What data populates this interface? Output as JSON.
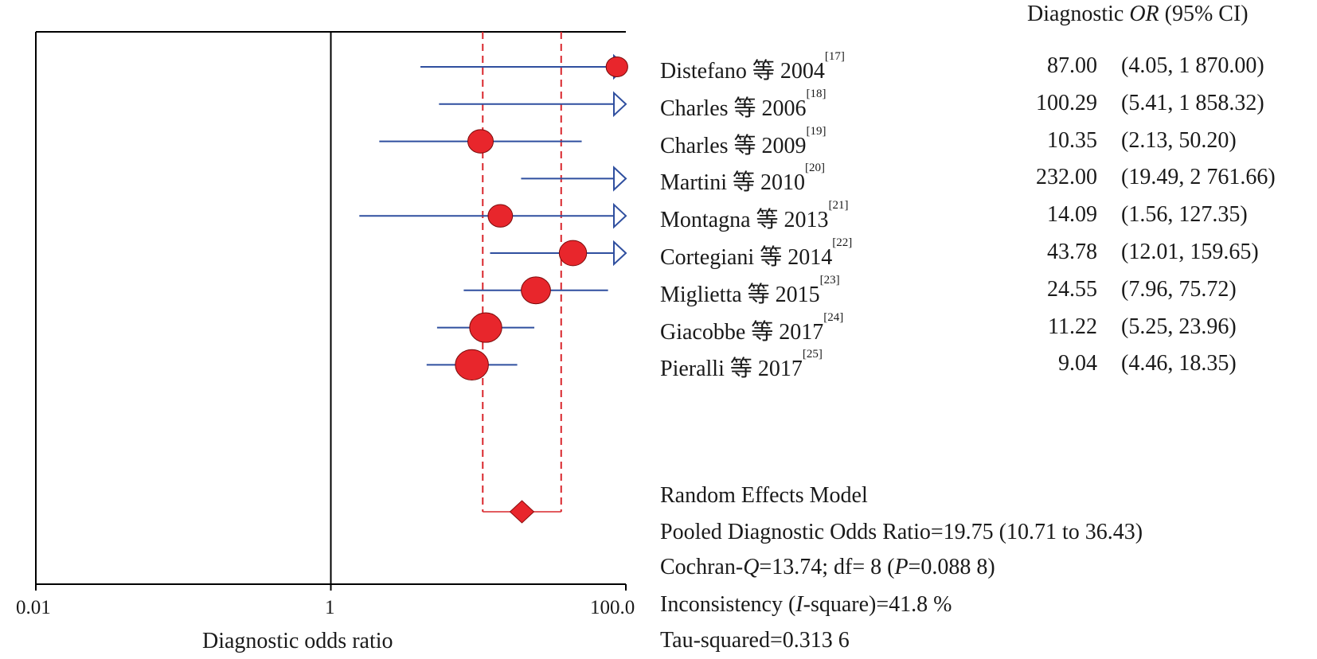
{
  "chart_data": {
    "type": "forest",
    "xlabel": "Diagnostic odds ratio",
    "x_scale": "log",
    "x_ticks": [
      "0.01",
      "1",
      "100.0"
    ],
    "xlim": [
      0.01,
      100
    ],
    "column_header": {
      "prefix": "Diagnostic ",
      "italic": "OR",
      "suffix": " (95% CI)"
    },
    "studies": [
      {
        "name": "Distefano 等 2004",
        "ref": "[17]",
        "or": 87.0,
        "ci_low": 4.05,
        "ci_high": 1870.0,
        "or_text": "87.00",
        "ci_text": "(4.05, 1 870.00)"
      },
      {
        "name": "Charles 等 2006",
        "ref": "[18]",
        "or": 100.29,
        "ci_low": 5.41,
        "ci_high": 1858.32,
        "or_text": "100.29",
        "ci_text": "(5.41, 1 858.32)"
      },
      {
        "name": "Charles 等 2009",
        "ref": "[19]",
        "or": 10.35,
        "ci_low": 2.13,
        "ci_high": 50.2,
        "or_text": "10.35",
        "ci_text": "(2.13, 50.20)"
      },
      {
        "name": "Martini 等 2010",
        "ref": "[20]",
        "or": 232.0,
        "ci_low": 19.49,
        "ci_high": 2761.66,
        "or_text": "232.00",
        "ci_text": "(19.49, 2 761.66)"
      },
      {
        "name": "Montagna 等 2013",
        "ref": "[21]",
        "or": 14.09,
        "ci_low": 1.56,
        "ci_high": 127.35,
        "or_text": "14.09",
        "ci_text": "(1.56, 127.35)"
      },
      {
        "name": "Cortegiani 等 2014",
        "ref": "[22]",
        "or": 43.78,
        "ci_low": 12.01,
        "ci_high": 159.65,
        "or_text": "43.78",
        "ci_text": "(12.01, 159.65)"
      },
      {
        "name": "Miglietta 等 2015",
        "ref": "[23]",
        "or": 24.55,
        "ci_low": 7.96,
        "ci_high": 75.72,
        "or_text": "24.55",
        "ci_text": "(7.96, 75.72)"
      },
      {
        "name": "Giacobbe 等 2017",
        "ref": "[24]",
        "or": 11.22,
        "ci_low": 5.25,
        "ci_high": 23.96,
        "or_text": "11.22",
        "ci_text": "(5.25, 23.96)"
      },
      {
        "name": "Pieralli 等 2017",
        "ref": "[25]",
        "or": 9.04,
        "ci_low": 4.46,
        "ci_high": 18.35,
        "or_text": "9.04",
        "ci_text": "(4.46, 18.35)"
      }
    ],
    "pooled": {
      "or": 19.75,
      "ci_low": 10.71,
      "ci_high": 36.43
    },
    "marker_weight": [
      0.3,
      0.0,
      0.5,
      0.0,
      0.45,
      0.6,
      0.7,
      0.85,
      0.9
    ],
    "summary": {
      "model": "Random Effects Model",
      "pooled_text": "Pooled Diagnostic Odds Ratio=19.75 (10.71 to 36.43)",
      "cochran_pre": "Cochran-",
      "cochran_q": "Q",
      "cochran_mid": "=13.74; df= 8 (",
      "cochran_p": "P",
      "cochran_post": "=0.088 8)",
      "incons_pre": "Inconsistency (",
      "incons_i": "I",
      "incons_post": "-square)=41.8 %",
      "tau": "Tau-squared=0.313 6"
    },
    "colors": {
      "ci_line": "#2f4f9f",
      "marker": "#e8262c",
      "pooled": "#e8262c",
      "ref_lines": "#d9262c",
      "axis": "#000000"
    }
  }
}
